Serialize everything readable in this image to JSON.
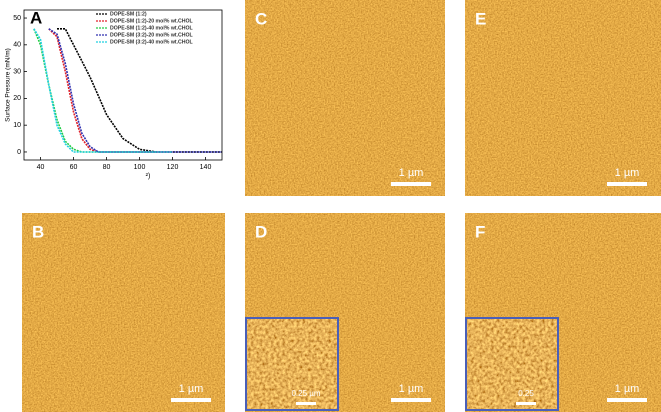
{
  "chart_data": {
    "type": "line",
    "panel_label": "A",
    "y_label": "Surface Pressure (mN/m)",
    "x_label": "²)",
    "x": [
      36,
      40,
      45,
      50,
      55,
      60,
      65,
      70,
      75,
      80,
      90,
      100,
      110,
      120,
      130,
      140,
      150
    ],
    "series": [
      {
        "name": "DOPE-SM (1:2)",
        "color": "#000000",
        "values": [
          null,
          null,
          null,
          46,
          46,
          40,
          34,
          28,
          21,
          14,
          5,
          1,
          0,
          0,
          0,
          0,
          0
        ]
      },
      {
        "name": "DOPE-SM (1:2)-20 mol% wt.CHOL",
        "color": "#e0202a",
        "values": [
          null,
          null,
          46,
          43,
          30,
          15,
          5,
          1,
          0,
          0,
          0,
          0,
          0,
          0,
          null,
          null,
          null
        ]
      },
      {
        "name": "DOPE-SM (1:2)-40 mol% wt.CHOL",
        "color": "#22cc44",
        "values": [
          46,
          40,
          25,
          12,
          4,
          1,
          0,
          0,
          0,
          0,
          0,
          0,
          0,
          null,
          null,
          null,
          null
        ]
      },
      {
        "name": "DOPE-SM (3:2)-20 mol% wt.CHOL",
        "color": "#3030b0",
        "values": [
          null,
          null,
          46,
          44,
          33,
          18,
          7,
          2,
          0,
          0,
          0,
          0,
          0,
          0,
          0,
          0,
          0
        ]
      },
      {
        "name": "DOPE-SM (3:2)-40 mol% wt.CHOL",
        "color": "#20d0e0",
        "values": [
          46,
          42,
          25,
          10,
          3,
          0,
          0,
          0,
          0,
          0,
          0,
          0,
          0,
          0,
          null,
          null,
          null
        ]
      }
    ],
    "xlim": [
      30,
      150
    ],
    "xticks": [
      40,
      60,
      80,
      100,
      120,
      140
    ],
    "ylim": [
      -3,
      53
    ],
    "yticks": [
      0,
      10,
      20,
      30,
      40,
      50
    ]
  },
  "panels": [
    {
      "label": "C",
      "scale_bar": "1 µm"
    },
    {
      "label": "E",
      "scale_bar": "1 µm"
    },
    {
      "label": "B",
      "scale_bar": "1 µm"
    },
    {
      "label": "D",
      "scale_bar": "1 µm",
      "inset_scale_bar": "0.25 µm"
    },
    {
      "label": "F",
      "scale_bar": "1 µm",
      "inset_scale_bar": "0.25"
    }
  ]
}
